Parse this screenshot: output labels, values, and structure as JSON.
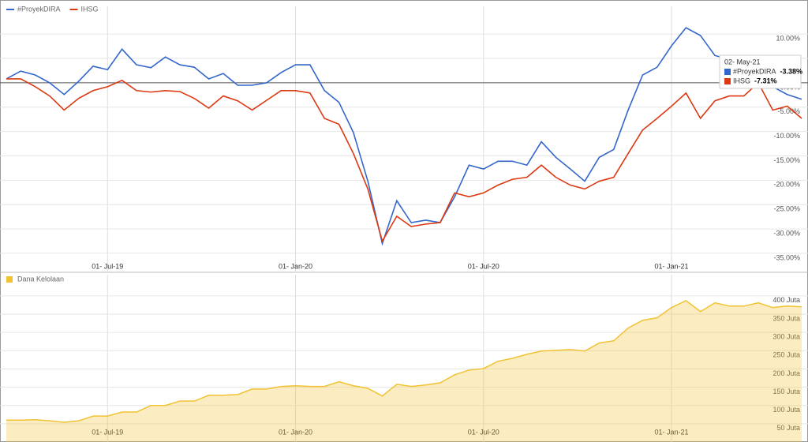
{
  "chart_data": [
    {
      "type": "line",
      "categories": [
        null,
        null,
        null,
        null,
        null,
        null,
        null,
        "01- Jul-19",
        null,
        null,
        null,
        null,
        null,
        null,
        null,
        null,
        null,
        null,
        null,
        null,
        "01- Jan-20",
        null,
        null,
        null,
        null,
        null,
        null,
        null,
        null,
        null,
        null,
        null,
        null,
        "01- Jul-20",
        null,
        null,
        null,
        null,
        null,
        null,
        null,
        null,
        null,
        null,
        null,
        null,
        "01- Jan-21",
        null,
        null,
        null,
        null,
        null,
        null,
        null,
        null,
        null
      ],
      "series": [
        {
          "name": "#ProyekDIRA",
          "color": "#3366cc",
          "values": [
            0.8,
            2.4,
            1.6,
            0,
            -2.4,
            0.3,
            3.4,
            2.7,
            6.9,
            3.7,
            3.1,
            5.3,
            3.7,
            3.2,
            0.8,
            1.9,
            -0.5,
            -0.5,
            0,
            2.1,
            3.7,
            3.7,
            -1.6,
            -4.0,
            -10.2,
            -20.2,
            -33.0,
            -24.2,
            -28.7,
            -28.2,
            -28.7,
            -23.4,
            -16.9,
            -17.7,
            -16.1,
            -16.1,
            -16.9,
            -12.1,
            -15.3,
            -17.7,
            -20.2,
            -15.3,
            -13.7,
            -5.6,
            1.6,
            3.2,
            7.6,
            11.3,
            9.7,
            5.6,
            4.8,
            0.8,
            1.6,
            -0.8,
            -2.4,
            -3.38
          ]
        },
        {
          "name": "IHSG",
          "color": "#dc3912",
          "values": [
            0.8,
            0.8,
            -0.8,
            -2.7,
            -5.6,
            -3.2,
            -1.6,
            -0.8,
            0.5,
            -1.6,
            -1.9,
            -1.6,
            -1.8,
            -3.2,
            -5.2,
            -2.7,
            -3.7,
            -5.6,
            -3.6,
            -1.6,
            -1.6,
            -2.1,
            -7.3,
            -8.5,
            -14.5,
            -21.8,
            -32.5,
            -27.4,
            -29.5,
            -29.0,
            -28.7,
            -22.6,
            -23.4,
            -22.6,
            -21.0,
            -19.8,
            -19.4,
            -16.9,
            -19.4,
            -21.0,
            -21.8,
            -20.2,
            -19.4,
            -14.5,
            -9.7,
            -7.3,
            -4.8,
            -2.1,
            -7.3,
            -3.7,
            -2.7,
            -2.7,
            0,
            -5.6,
            -4.8,
            -7.31
          ]
        }
      ],
      "ylim": [
        -38.9,
        15.7
      ],
      "yticks": [
        {
          "value": 10,
          "label": "10.00%"
        },
        {
          "value": 5,
          "label": "5.00%"
        },
        {
          "value": 0,
          "label": "0.00%"
        },
        {
          "value": -5,
          "label": "-5.00%"
        },
        {
          "value": -10,
          "label": "-10.00%"
        },
        {
          "value": -15,
          "label": "-15.00%"
        },
        {
          "value": -20,
          "label": "-20.00%"
        },
        {
          "value": -25,
          "label": "-25.00%"
        },
        {
          "value": -30,
          "label": "-30.00%"
        },
        {
          "value": -35,
          "label": "-35.00%"
        }
      ],
      "grid": true,
      "tooltip": {
        "title": "02- May-21",
        "labels": [
          "-3.38%",
          "-7.31%"
        ]
      }
    },
    {
      "type": "area",
      "categories": [
        null,
        null,
        null,
        null,
        null,
        null,
        null,
        "01- Jul-19",
        null,
        null,
        null,
        null,
        null,
        null,
        null,
        null,
        null,
        null,
        null,
        null,
        "01- Jan-20",
        null,
        null,
        null,
        null,
        null,
        null,
        null,
        null,
        null,
        null,
        null,
        null,
        "01- Jul-20",
        null,
        null,
        null,
        null,
        null,
        null,
        null,
        null,
        null,
        null,
        null,
        null,
        "01- Jan-21",
        null,
        null,
        null,
        null,
        null,
        null,
        null,
        null,
        null
      ],
      "series": [
        {
          "name": "Dana Kelolaan",
          "color": "#f1c232",
          "values": [
            60,
            60,
            61,
            58,
            54,
            58,
            71,
            71,
            82,
            82,
            100,
            100,
            112,
            112,
            128,
            128,
            130,
            145,
            145,
            152,
            154,
            152,
            152,
            165,
            154,
            147,
            126,
            158,
            152,
            156,
            162,
            184,
            197,
            201,
            221,
            229,
            240,
            249,
            251,
            253,
            249,
            271,
            277,
            312,
            333,
            340,
            368,
            387,
            357,
            381,
            372,
            372,
            381,
            368,
            372,
            370
          ]
        }
      ],
      "ylim": [
        0,
        458
      ],
      "yticks": [
        {
          "value": 50,
          "label": "50 Juta"
        },
        {
          "value": 100,
          "label": "100 Juta"
        },
        {
          "value": 150,
          "label": "150 Juta"
        },
        {
          "value": 200,
          "label": "200 Juta"
        },
        {
          "value": 250,
          "label": "250 Juta"
        },
        {
          "value": 300,
          "label": "300 Juta"
        },
        {
          "value": 350,
          "label": "350 Juta"
        },
        {
          "value": 400,
          "label": "400 Juta"
        }
      ],
      "grid": true
    }
  ]
}
